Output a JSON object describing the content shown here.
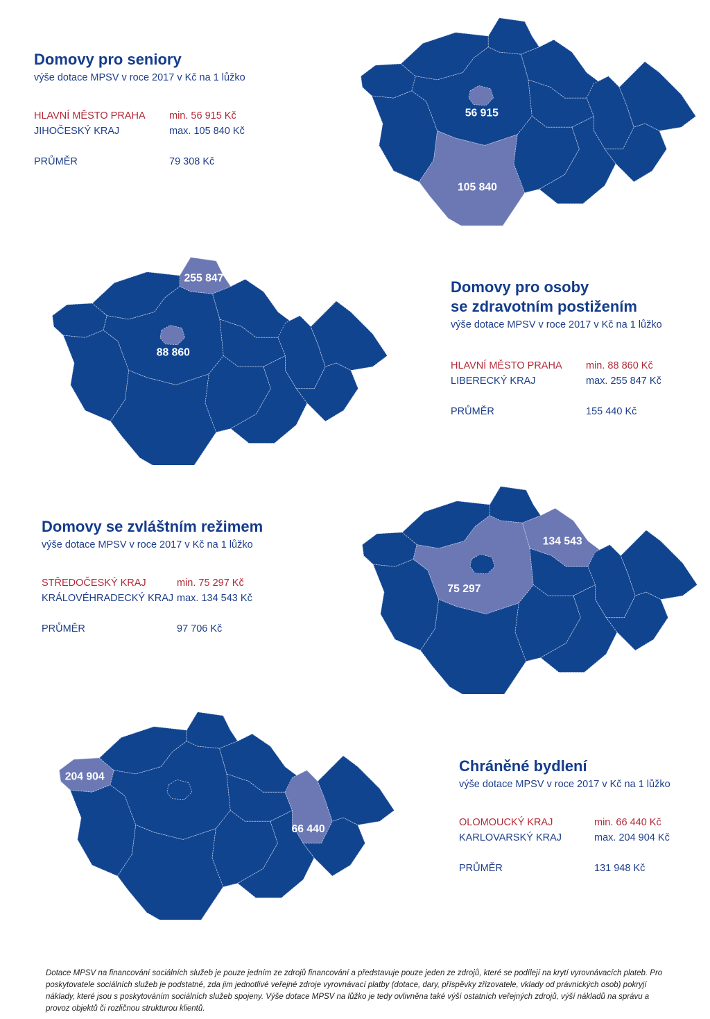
{
  "panels": [
    {
      "title_lines": [
        "Domovy pro seniory"
      ],
      "subtitle": "výše dotace MPSV v roce 2017 v Kč na 1 lůžko",
      "min_region": "HLAVNÍ MĚSTO PRAHA",
      "min_value": "min. 56 915 Kč",
      "max_region": "JIHOČESKÝ KRAJ",
      "max_value": "max. 105 840 Kč",
      "avg_label": "PRŮMĚR",
      "avg_value": "79 308 Kč",
      "map_labels": [
        "56 915",
        "105 840"
      ],
      "highlighted_regions": [
        "praha",
        "jihocesky"
      ]
    },
    {
      "title_lines": [
        "Domovy pro osoby",
        "se zdravotním postižením"
      ],
      "subtitle": "výše dotace MPSV v roce 2017 v Kč na 1 lůžko",
      "min_region": "HLAVNÍ MĚSTO PRAHA",
      "min_value": "min. 88 860 Kč",
      "max_region": "LIBERECKÝ KRAJ",
      "max_value": "max. 255 847 Kč",
      "avg_label": "PRŮMĚR",
      "avg_value": "155 440 Kč",
      "map_labels": [
        "255 847",
        "88 860"
      ],
      "highlighted_regions": [
        "liberecky",
        "praha"
      ]
    },
    {
      "title_lines": [
        "Domovy se zvláštním režimem"
      ],
      "subtitle": "výše dotace MPSV v roce 2017 v Kč na 1 lůžko",
      "min_region": "STŘEDOČESKÝ KRAJ",
      "min_value": "min. 75 297 Kč",
      "max_region": "KRÁLOVÉHRADECKÝ KRAJ",
      "max_value": "max. 134 543 Kč",
      "avg_label": "PRŮMĚR",
      "avg_value": "97 706 Kč",
      "map_labels": [
        "134 543",
        "75 297"
      ],
      "highlighted_regions": [
        "kralovehradecky",
        "stredocesky"
      ]
    },
    {
      "title_lines": [
        "Chráněné bydlení"
      ],
      "subtitle": "výše dotace MPSV v roce 2017 v Kč na 1 lůžko",
      "min_region": "OLOMOUCKÝ KRAJ",
      "min_value": "min. 66 440 Kč",
      "max_region": "KARLOVARSKÝ KRAJ",
      "max_value": "max. 204 904 Kč",
      "avg_label": "PRŮMĚR",
      "avg_value": "131 948 Kč",
      "map_labels": [
        "204 904",
        "66 440"
      ],
      "highlighted_regions": [
        "karlovarsky",
        "olomoucky"
      ]
    }
  ],
  "colors": {
    "region": "#11448f",
    "highlight": "#6b78b4",
    "title": "#143c8c",
    "min": "#b22a37"
  },
  "footnote": "Dotace MPSV na financování sociálních služeb je pouze jedním ze zdrojů financování a představuje pouze jeden ze zdrojů, které se podílejí na krytí vyrovnávacích plateb. Pro poskytovatele sociálních služeb je podstatné, zda jim jednotlivé veřejné zdroje vyrovnávací platby (dotace, dary, příspěvky zřizovatele, vklady od právnických osob) pokryjí náklady, které jsou s poskytováním sociálních služeb spojeny. Výše dotace MPSV na lůžko je tedy ovlivněna také výší ostatních veřejných zdrojů, výší nákladů na správu a provoz objektů či rozličnou strukturou klientů."
}
